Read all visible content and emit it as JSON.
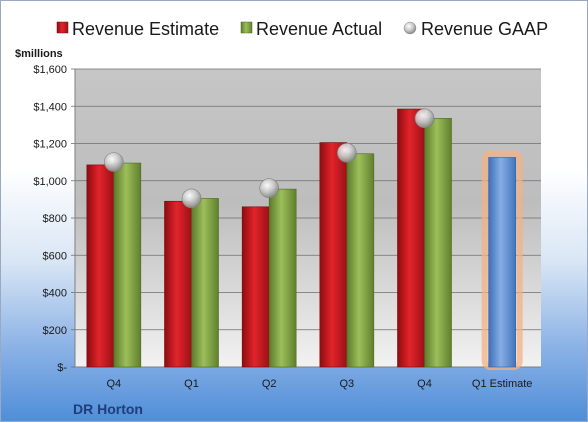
{
  "chart_data": {
    "type": "bar",
    "company": "DR Horton",
    "y_unit_label": "$millions",
    "categories": [
      "Q4",
      "Q1",
      "Q2",
      "Q3",
      "Q4",
      "Q1 Estimate"
    ],
    "ylim": [
      0,
      1600
    ],
    "y_ticks": [
      0,
      200,
      400,
      600,
      800,
      1000,
      1200,
      1400,
      1600
    ],
    "y_tick_labels": [
      "$-",
      "$200",
      "$400",
      "$600",
      "$800",
      "$1,000",
      "$1,200",
      "$1,400",
      "$1,600"
    ],
    "grid": true,
    "legend_position": "top",
    "series": [
      {
        "name": "Revenue Estimate",
        "kind": "bar",
        "color": "#c0141b",
        "values": [
          1085,
          890,
          860,
          1205,
          1385,
          null
        ]
      },
      {
        "name": "Revenue Actual",
        "kind": "bar",
        "color": "#7f9f3f",
        "values": [
          1095,
          905,
          955,
          1145,
          1335,
          null
        ]
      },
      {
        "name": "Revenue GAAP",
        "kind": "marker",
        "color": "#b8b8b8",
        "values": [
          1100,
          905,
          960,
          1150,
          1335,
          null
        ]
      },
      {
        "name": "",
        "kind": "bar",
        "color": "#5b8fd6",
        "highlight": "#f4b183",
        "values": [
          null,
          null,
          null,
          null,
          null,
          1125
        ]
      }
    ]
  }
}
